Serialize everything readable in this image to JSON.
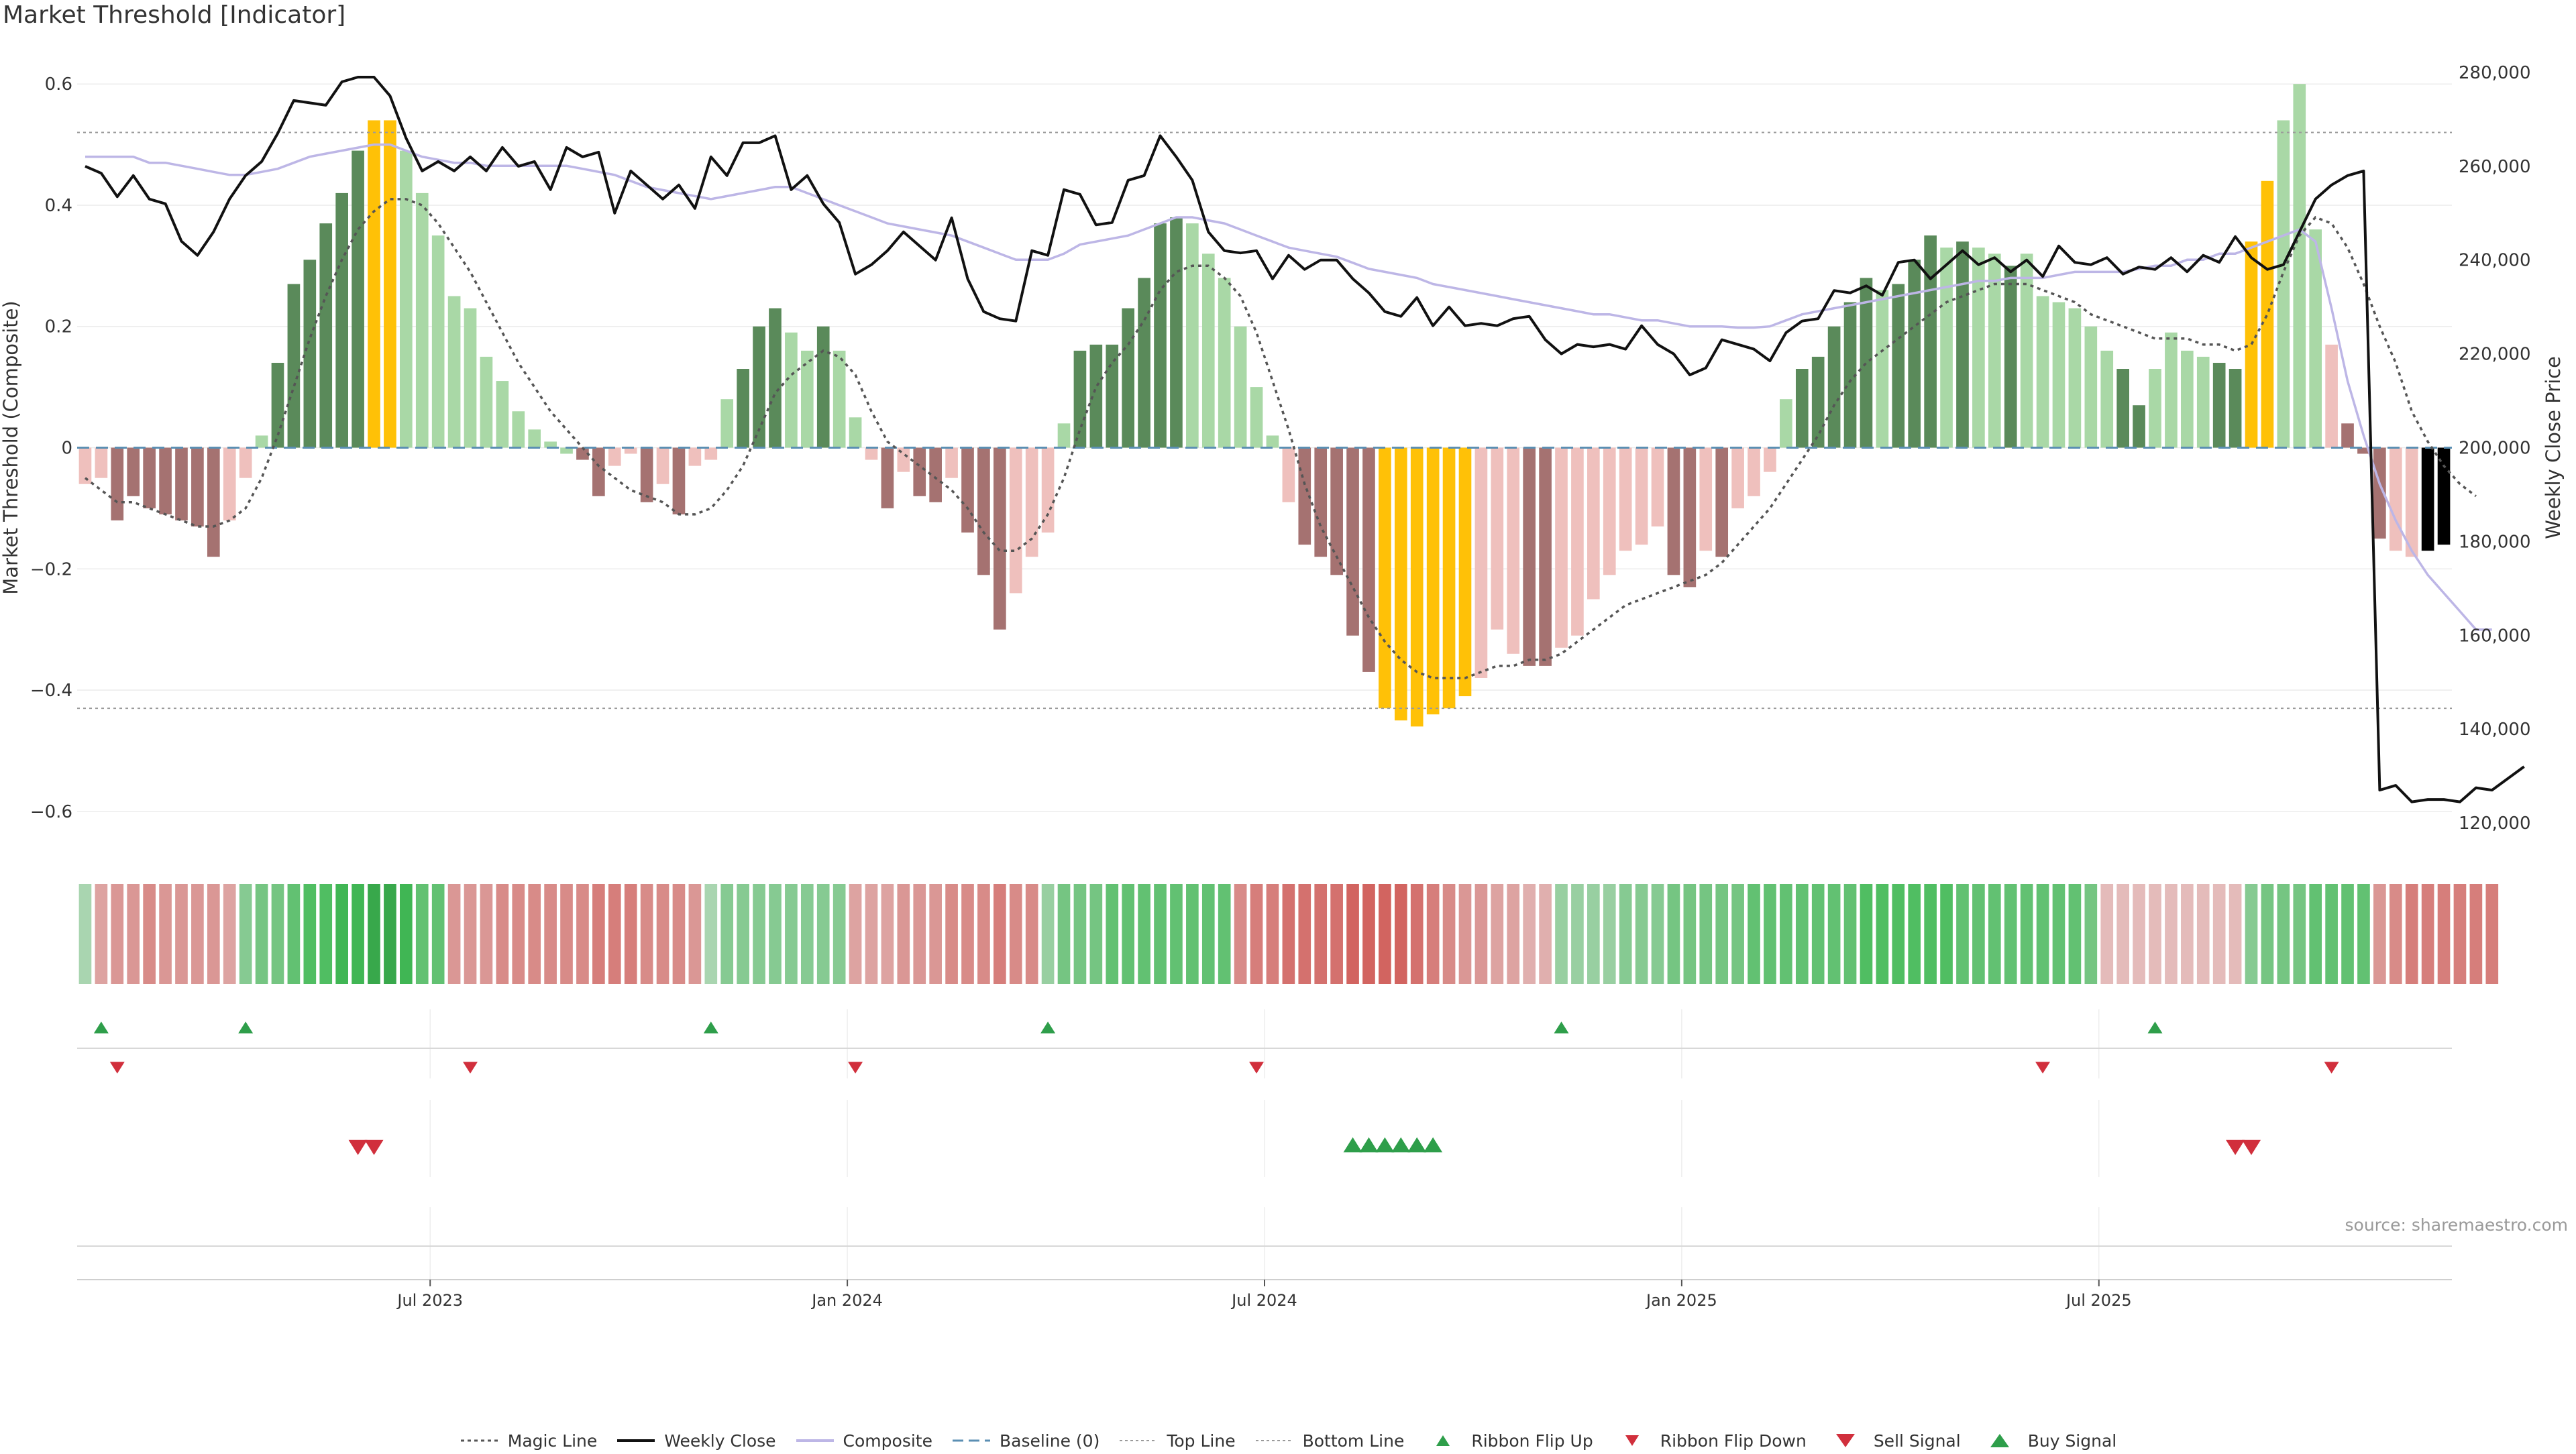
{
  "title": "Market Threshold [Indicator]",
  "source": "source: sharemaestro.com",
  "colors": {
    "pos_dark": "#5a8a5a",
    "pos_light": "#a9d8a6",
    "neg_dark": "#a57271",
    "neg_light": "#efc0bd",
    "extreme": "#ffc107",
    "price": "#111111",
    "composite": "#bdb6e6",
    "magic": "#555555",
    "baseline": "#5b8fb3",
    "threshold": "#9a9a9a",
    "up": "#2e9e4a",
    "down": "#d12f3c"
  },
  "legend": [
    {
      "key": "magic",
      "label": "Magic Line"
    },
    {
      "key": "price",
      "label": "Weekly Close"
    },
    {
      "key": "composite",
      "label": "Composite"
    },
    {
      "key": "baseline",
      "label": "Baseline (0)"
    },
    {
      "key": "top",
      "label": "Top Line"
    },
    {
      "key": "bottom",
      "label": "Bottom Line"
    },
    {
      "key": "flip_up",
      "label": "Ribbon Flip Up"
    },
    {
      "key": "flip_down",
      "label": "Ribbon Flip Down"
    },
    {
      "key": "sell",
      "label": "Sell Signal"
    },
    {
      "key": "buy",
      "label": "Buy Signal"
    }
  ],
  "chart_data": {
    "type": "bar",
    "title": "Market Threshold [Indicator]",
    "ylabel": "Market Threshold (Composite)",
    "ylabel_right": "Weekly Close Price",
    "ylim": [
      -0.65,
      0.65
    ],
    "ylim_right": [
      116000,
      284000
    ],
    "left_ticks": [
      0.6,
      0.4,
      0.2,
      0,
      -0.2,
      -0.4,
      -0.6
    ],
    "left_tick_labels": [
      "0.6",
      "0.4",
      "0.2",
      "0",
      "−0.2",
      "−0.4",
      "−0.6"
    ],
    "right_ticks": [
      280000,
      260000,
      240000,
      220000,
      200000,
      180000,
      160000,
      140000,
      120000
    ],
    "right_tick_labels": [
      "280,000",
      "260,000",
      "240,000",
      "220,000",
      "200,000",
      "180,000",
      "160,000",
      "140,000",
      "120,000"
    ],
    "x_ticks": [
      {
        "index": 22,
        "label": "Jul 2023"
      },
      {
        "index": 48,
        "label": "Jan 2024"
      },
      {
        "index": 74,
        "label": "Jul 2024"
      },
      {
        "index": 100,
        "label": "Jan 2025"
      },
      {
        "index": 126,
        "label": "Jul 2025"
      }
    ],
    "top_line": 0.52,
    "bottom_line": -0.43,
    "bars": [
      -0.06,
      -0.05,
      -0.12,
      -0.08,
      -0.1,
      -0.11,
      -0.12,
      -0.13,
      -0.18,
      -0.12,
      -0.05,
      0.02,
      0.14,
      0.27,
      0.31,
      0.37,
      0.42,
      0.49,
      0.54,
      0.54,
      0.49,
      0.42,
      0.35,
      0.25,
      0.23,
      0.15,
      0.11,
      0.06,
      0.03,
      0.01,
      -0.01,
      -0.02,
      -0.08,
      -0.03,
      -0.01,
      -0.09,
      -0.06,
      -0.11,
      -0.03,
      -0.02,
      0.08,
      0.13,
      0.2,
      0.23,
      0.19,
      0.16,
      0.2,
      0.16,
      0.05,
      -0.02,
      -0.1,
      -0.04,
      -0.08,
      -0.09,
      -0.05,
      -0.14,
      -0.21,
      -0.3,
      -0.24,
      -0.18,
      -0.14,
      0.04,
      0.16,
      0.17,
      0.17,
      0.23,
      0.28,
      0.37,
      0.38,
      0.37,
      0.32,
      0.28,
      0.2,
      0.1,
      0.02,
      -0.09,
      -0.16,
      -0.18,
      -0.21,
      -0.31,
      -0.37,
      -0.43,
      -0.45,
      -0.46,
      -0.44,
      -0.43,
      -0.41,
      -0.38,
      -0.3,
      -0.34,
      -0.36,
      -0.36,
      -0.33,
      -0.31,
      -0.25,
      -0.21,
      -0.17,
      -0.16,
      -0.13,
      -0.21,
      -0.23,
      -0.17,
      -0.18,
      -0.1,
      -0.08,
      -0.04,
      0.08,
      0.13,
      0.15,
      0.2,
      0.24,
      0.28,
      0.26,
      0.27,
      0.31,
      0.35,
      0.33,
      0.34,
      0.33,
      0.32,
      0.3,
      0.32,
      0.25,
      0.24,
      0.23,
      0.2,
      0.16,
      0.13,
      0.07,
      0.13,
      0.19,
      0.16,
      0.15,
      0.14,
      0.13,
      0.34,
      0.44,
      0.54,
      0.6,
      0.36,
      0.17,
      0.04,
      -0.01,
      -0.15,
      -0.17,
      -0.18,
      -0.17,
      -0.16
    ],
    "bar_color_class": [
      "neg_light",
      "neg_light",
      "neg_dark",
      "neg_dark",
      "neg_dark",
      "neg_dark",
      "neg_dark",
      "neg_dark",
      "neg_dark",
      "neg_light",
      "neg_light",
      "pos_light",
      "pos_dark",
      "pos_dark",
      "pos_dark",
      "pos_dark",
      "pos_dark",
      "pos_dark",
      "extreme",
      "extreme",
      "pos_light",
      "pos_light",
      "pos_light",
      "pos_light",
      "pos_light",
      "pos_light",
      "pos_light",
      "pos_light",
      "pos_light",
      "pos_light",
      "pos_light",
      "neg_dark",
      "neg_dark",
      "neg_light",
      "neg_light",
      "neg_dark",
      "neg_light",
      "neg_dark",
      "neg_light",
      "neg_light",
      "pos_light",
      "pos_dark",
      "pos_dark",
      "pos_dark",
      "pos_light",
      "pos_light",
      "pos_dark",
      "pos_light",
      "pos_light",
      "neg_light",
      "neg_dark",
      "neg_light",
      "neg_dark",
      "neg_dark",
      "neg_light",
      "neg_dark",
      "neg_dark",
      "neg_dark",
      "neg_light",
      "neg_light",
      "neg_light",
      "pos_light",
      "pos_dark",
      "pos_dark",
      "pos_dark",
      "pos_dark",
      "pos_dark",
      "pos_dark",
      "pos_dark",
      "pos_light",
      "pos_light",
      "pos_light",
      "pos_light",
      "pos_light",
      "pos_light",
      "neg_light",
      "neg_dark",
      "neg_dark",
      "neg_dark",
      "neg_dark",
      "neg_dark",
      "extreme",
      "extreme",
      "extreme",
      "extreme",
      "extreme",
      "extreme",
      "neg_light",
      "neg_light",
      "neg_light",
      "neg_dark",
      "neg_dark",
      "neg_light",
      "neg_light",
      "neg_light",
      "neg_light",
      "neg_light",
      "neg_light",
      "neg_light",
      "neg_dark",
      "neg_dark",
      "neg_light",
      "neg_dark",
      "neg_light",
      "neg_light",
      "neg_light",
      "pos_light",
      "pos_dark",
      "pos_dark",
      "pos_dark",
      "pos_dark",
      "pos_dark",
      "pos_light",
      "pos_dark",
      "pos_dark",
      "pos_dark",
      "pos_light",
      "pos_dark",
      "pos_light",
      "pos_light",
      "pos_dark",
      "pos_light",
      "pos_light",
      "pos_light",
      "pos_light",
      "pos_light",
      "pos_light",
      "pos_dark",
      "pos_dark",
      "pos_light",
      "pos_light",
      "pos_light",
      "pos_light",
      "pos_dark",
      "pos_dark",
      "extreme",
      "extreme",
      "pos_light",
      "pos_light",
      "pos_light",
      "neg_light",
      "neg_dark",
      "neg_dark",
      "neg_dark",
      "neg_light",
      "neg_light"
    ],
    "magic_line": [
      -0.05,
      -0.07,
      -0.09,
      -0.09,
      -0.1,
      -0.11,
      -0.12,
      -0.13,
      -0.13,
      -0.12,
      -0.1,
      -0.05,
      0.02,
      0.1,
      0.18,
      0.25,
      0.31,
      0.36,
      0.39,
      0.41,
      0.41,
      0.4,
      0.37,
      0.33,
      0.29,
      0.24,
      0.19,
      0.14,
      0.1,
      0.06,
      0.03,
      0.0,
      -0.03,
      -0.05,
      -0.07,
      -0.08,
      -0.09,
      -0.11,
      -0.11,
      -0.1,
      -0.07,
      -0.03,
      0.03,
      0.09,
      0.12,
      0.14,
      0.16,
      0.15,
      0.12,
      0.06,
      0.01,
      -0.01,
      -0.03,
      -0.05,
      -0.07,
      -0.1,
      -0.14,
      -0.17,
      -0.17,
      -0.15,
      -0.11,
      -0.05,
      0.03,
      0.1,
      0.14,
      0.17,
      0.21,
      0.26,
      0.29,
      0.3,
      0.3,
      0.28,
      0.25,
      0.19,
      0.11,
      0.03,
      -0.06,
      -0.13,
      -0.18,
      -0.23,
      -0.28,
      -0.32,
      -0.35,
      -0.37,
      -0.38,
      -0.38,
      -0.38,
      -0.37,
      -0.36,
      -0.36,
      -0.35,
      -0.35,
      -0.34,
      -0.32,
      -0.3,
      -0.28,
      -0.26,
      -0.25,
      -0.24,
      -0.23,
      -0.22,
      -0.21,
      -0.19,
      -0.16,
      -0.13,
      -0.1,
      -0.06,
      -0.02,
      0.02,
      0.07,
      0.11,
      0.14,
      0.16,
      0.18,
      0.2,
      0.22,
      0.24,
      0.25,
      0.26,
      0.27,
      0.27,
      0.27,
      0.26,
      0.25,
      0.24,
      0.22,
      0.21,
      0.2,
      0.19,
      0.18,
      0.18,
      0.18,
      0.17,
      0.17,
      0.16,
      0.17,
      0.22,
      0.29,
      0.35,
      0.38,
      0.37,
      0.33,
      0.27,
      0.2,
      0.14,
      0.06,
      0.01,
      -0.03,
      -0.06,
      -0.08
    ],
    "weekly_close": [
      260000,
      258500,
      253500,
      258000,
      253000,
      252000,
      244000,
      241000,
      246000,
      253000,
      258000,
      261000,
      267000,
      274000,
      273500,
      273000,
      278000,
      279000,
      279000,
      275000,
      266000,
      259000,
      261000,
      259000,
      262000,
      259000,
      264000,
      260000,
      261000,
      255000,
      264000,
      262000,
      263000,
      250000,
      259000,
      256000,
      253000,
      256000,
      251000,
      262000,
      258000,
      265000,
      265000,
      266500,
      255000,
      258000,
      252000,
      248000,
      237000,
      239000,
      242000,
      246000,
      243000,
      240000,
      249000,
      236000,
      229000,
      227500,
      227000,
      242000,
      241000,
      255000,
      254000,
      247500,
      248000,
      257000,
      258000,
      266500,
      262000,
      257000,
      246000,
      242000,
      241500,
      242000,
      236000,
      241000,
      238000,
      240000,
      240000,
      236000,
      233000,
      229000,
      228000,
      232000,
      226000,
      230000,
      226000,
      226500,
      226000,
      227500,
      228000,
      223000,
      220000,
      222000,
      221500,
      222000,
      221000,
      226000,
      222000,
      220000,
      215500,
      217000,
      223000,
      222000,
      221000,
      218500,
      224500,
      227000,
      227500,
      233500,
      233000,
      234500,
      232500,
      239500,
      240000,
      236000,
      239000,
      242000,
      239000,
      240500,
      237500,
      240000,
      236500,
      243000,
      239500,
      239000,
      240500,
      237000,
      238500,
      238000,
      240500,
      237500,
      241000,
      239500,
      245000,
      240500,
      238000,
      239000,
      246000,
      253000,
      256000,
      258000,
      259000,
      127000,
      128000,
      124500,
      125000,
      125000,
      124500,
      127500,
      127000,
      129500,
      132000
    ],
    "composite": [
      0.48,
      0.48,
      0.48,
      0.48,
      0.47,
      0.47,
      0.465,
      0.46,
      0.455,
      0.45,
      0.45,
      0.455,
      0.46,
      0.47,
      0.48,
      0.485,
      0.49,
      0.495,
      0.5,
      0.5,
      0.49,
      0.48,
      0.475,
      0.47,
      0.47,
      0.465,
      0.465,
      0.465,
      0.465,
      0.465,
      0.465,
      0.46,
      0.455,
      0.45,
      0.44,
      0.43,
      0.425,
      0.42,
      0.415,
      0.41,
      0.415,
      0.42,
      0.425,
      0.43,
      0.43,
      0.42,
      0.41,
      0.4,
      0.39,
      0.38,
      0.37,
      0.365,
      0.36,
      0.355,
      0.35,
      0.34,
      0.33,
      0.32,
      0.31,
      0.31,
      0.31,
      0.32,
      0.335,
      0.34,
      0.345,
      0.35,
      0.36,
      0.37,
      0.38,
      0.38,
      0.375,
      0.37,
      0.36,
      0.35,
      0.34,
      0.33,
      0.325,
      0.32,
      0.315,
      0.305,
      0.295,
      0.29,
      0.285,
      0.28,
      0.27,
      0.265,
      0.26,
      0.255,
      0.25,
      0.245,
      0.24,
      0.235,
      0.23,
      0.225,
      0.22,
      0.22,
      0.215,
      0.21,
      0.21,
      0.205,
      0.2,
      0.2,
      0.2,
      0.198,
      0.198,
      0.2,
      0.21,
      0.22,
      0.225,
      0.23,
      0.235,
      0.24,
      0.245,
      0.25,
      0.255,
      0.26,
      0.265,
      0.27,
      0.275,
      0.275,
      0.28,
      0.28,
      0.28,
      0.285,
      0.29,
      0.29,
      0.29,
      0.29,
      0.295,
      0.3,
      0.3,
      0.31,
      0.31,
      0.32,
      0.32,
      0.33,
      0.34,
      0.35,
      0.36,
      0.34,
      0.23,
      0.11,
      0.02,
      -0.06,
      -0.12,
      -0.17,
      -0.21,
      -0.24,
      -0.27,
      -0.3,
      -0.3
    ],
    "ribbon_strength": [
      0.3,
      -0.5,
      -0.6,
      -0.6,
      -0.7,
      -0.6,
      -0.6,
      -0.6,
      -0.6,
      -0.5,
      0.5,
      0.6,
      0.6,
      0.7,
      0.8,
      0.8,
      0.9,
      0.9,
      1.0,
      1.0,
      0.9,
      0.7,
      0.7,
      -0.6,
      -0.6,
      -0.6,
      -0.7,
      -0.7,
      -0.7,
      -0.7,
      -0.7,
      -0.7,
      -0.8,
      -0.8,
      -0.8,
      -0.7,
      -0.7,
      -0.7,
      -0.6,
      0.3,
      0.5,
      0.5,
      0.5,
      0.5,
      0.5,
      0.5,
      0.5,
      0.5,
      -0.5,
      -0.5,
      -0.5,
      -0.6,
      -0.6,
      -0.6,
      -0.7,
      -0.7,
      -0.7,
      -0.8,
      -0.7,
      -0.7,
      0.4,
      0.6,
      0.6,
      0.6,
      0.7,
      0.7,
      0.7,
      0.7,
      0.7,
      0.7,
      0.7,
      0.7,
      -0.7,
      -0.8,
      -0.8,
      -0.9,
      -0.9,
      -0.9,
      -0.9,
      -1.0,
      -1.0,
      -1.0,
      -1.0,
      -0.9,
      -0.8,
      -0.7,
      -0.6,
      -0.6,
      -0.5,
      -0.5,
      -0.4,
      -0.4,
      0.4,
      0.4,
      0.4,
      0.4,
      0.5,
      0.5,
      0.5,
      0.6,
      0.6,
      0.6,
      0.6,
      0.6,
      0.7,
      0.7,
      0.7,
      0.7,
      0.7,
      0.7,
      0.7,
      0.8,
      0.8,
      0.8,
      0.8,
      0.8,
      0.8,
      0.7,
      0.7,
      0.7,
      0.7,
      0.7,
      0.7,
      0.7,
      0.7,
      0.6,
      -0.3,
      -0.3,
      -0.3,
      -0.3,
      -0.3,
      -0.3,
      -0.3,
      -0.3,
      -0.3,
      0.5,
      0.6,
      0.6,
      0.6,
      0.7,
      0.7,
      0.7,
      0.7,
      -0.6,
      -0.7,
      -0.8,
      -0.8,
      -0.8,
      -0.8,
      -0.8,
      -0.8
    ],
    "ribbon_flip_up": [
      1,
      10,
      39,
      60,
      92,
      129
    ],
    "ribbon_flip_down": [
      2,
      24,
      48,
      73,
      122,
      140
    ],
    "sell_signals": [
      17,
      18,
      134,
      135
    ],
    "buy_signals": [
      79,
      80,
      81,
      82,
      83,
      84
    ]
  }
}
